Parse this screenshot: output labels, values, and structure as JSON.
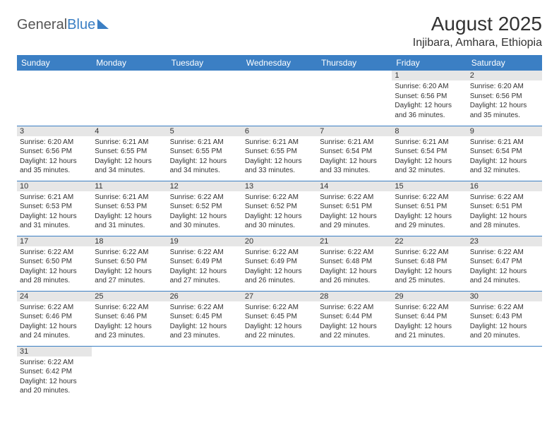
{
  "logo": {
    "part1": "General",
    "part2": "Blue"
  },
  "title": "August 2025",
  "location": "Injibara, Amhara, Ethiopia",
  "colors": {
    "header_bg": "#3b7fc4",
    "header_text": "#ffffff",
    "grid_line": "#3b7fc4",
    "daynum_bg": "#e6e6e6",
    "text": "#333333",
    "background": "#ffffff"
  },
  "typography": {
    "title_fontsize": 28,
    "location_fontsize": 16,
    "dayhead_fontsize": 12,
    "daynum_fontsize": 11,
    "body_fontsize": 10
  },
  "calendar": {
    "type": "table",
    "columns": [
      "Sunday",
      "Monday",
      "Tuesday",
      "Wednesday",
      "Thursday",
      "Friday",
      "Saturday"
    ],
    "weeks": [
      [
        null,
        null,
        null,
        null,
        null,
        {
          "n": "1",
          "sunrise": "Sunrise: 6:20 AM",
          "sunset": "Sunset: 6:56 PM",
          "daylight": "Daylight: 12 hours and 36 minutes."
        },
        {
          "n": "2",
          "sunrise": "Sunrise: 6:20 AM",
          "sunset": "Sunset: 6:56 PM",
          "daylight": "Daylight: 12 hours and 35 minutes."
        }
      ],
      [
        {
          "n": "3",
          "sunrise": "Sunrise: 6:20 AM",
          "sunset": "Sunset: 6:56 PM",
          "daylight": "Daylight: 12 hours and 35 minutes."
        },
        {
          "n": "4",
          "sunrise": "Sunrise: 6:21 AM",
          "sunset": "Sunset: 6:55 PM",
          "daylight": "Daylight: 12 hours and 34 minutes."
        },
        {
          "n": "5",
          "sunrise": "Sunrise: 6:21 AM",
          "sunset": "Sunset: 6:55 PM",
          "daylight": "Daylight: 12 hours and 34 minutes."
        },
        {
          "n": "6",
          "sunrise": "Sunrise: 6:21 AM",
          "sunset": "Sunset: 6:55 PM",
          "daylight": "Daylight: 12 hours and 33 minutes."
        },
        {
          "n": "7",
          "sunrise": "Sunrise: 6:21 AM",
          "sunset": "Sunset: 6:54 PM",
          "daylight": "Daylight: 12 hours and 33 minutes."
        },
        {
          "n": "8",
          "sunrise": "Sunrise: 6:21 AM",
          "sunset": "Sunset: 6:54 PM",
          "daylight": "Daylight: 12 hours and 32 minutes."
        },
        {
          "n": "9",
          "sunrise": "Sunrise: 6:21 AM",
          "sunset": "Sunset: 6:54 PM",
          "daylight": "Daylight: 12 hours and 32 minutes."
        }
      ],
      [
        {
          "n": "10",
          "sunrise": "Sunrise: 6:21 AM",
          "sunset": "Sunset: 6:53 PM",
          "daylight": "Daylight: 12 hours and 31 minutes."
        },
        {
          "n": "11",
          "sunrise": "Sunrise: 6:21 AM",
          "sunset": "Sunset: 6:53 PM",
          "daylight": "Daylight: 12 hours and 31 minutes."
        },
        {
          "n": "12",
          "sunrise": "Sunrise: 6:22 AM",
          "sunset": "Sunset: 6:52 PM",
          "daylight": "Daylight: 12 hours and 30 minutes."
        },
        {
          "n": "13",
          "sunrise": "Sunrise: 6:22 AM",
          "sunset": "Sunset: 6:52 PM",
          "daylight": "Daylight: 12 hours and 30 minutes."
        },
        {
          "n": "14",
          "sunrise": "Sunrise: 6:22 AM",
          "sunset": "Sunset: 6:51 PM",
          "daylight": "Daylight: 12 hours and 29 minutes."
        },
        {
          "n": "15",
          "sunrise": "Sunrise: 6:22 AM",
          "sunset": "Sunset: 6:51 PM",
          "daylight": "Daylight: 12 hours and 29 minutes."
        },
        {
          "n": "16",
          "sunrise": "Sunrise: 6:22 AM",
          "sunset": "Sunset: 6:51 PM",
          "daylight": "Daylight: 12 hours and 28 minutes."
        }
      ],
      [
        {
          "n": "17",
          "sunrise": "Sunrise: 6:22 AM",
          "sunset": "Sunset: 6:50 PM",
          "daylight": "Daylight: 12 hours and 28 minutes."
        },
        {
          "n": "18",
          "sunrise": "Sunrise: 6:22 AM",
          "sunset": "Sunset: 6:50 PM",
          "daylight": "Daylight: 12 hours and 27 minutes."
        },
        {
          "n": "19",
          "sunrise": "Sunrise: 6:22 AM",
          "sunset": "Sunset: 6:49 PM",
          "daylight": "Daylight: 12 hours and 27 minutes."
        },
        {
          "n": "20",
          "sunrise": "Sunrise: 6:22 AM",
          "sunset": "Sunset: 6:49 PM",
          "daylight": "Daylight: 12 hours and 26 minutes."
        },
        {
          "n": "21",
          "sunrise": "Sunrise: 6:22 AM",
          "sunset": "Sunset: 6:48 PM",
          "daylight": "Daylight: 12 hours and 26 minutes."
        },
        {
          "n": "22",
          "sunrise": "Sunrise: 6:22 AM",
          "sunset": "Sunset: 6:48 PM",
          "daylight": "Daylight: 12 hours and 25 minutes."
        },
        {
          "n": "23",
          "sunrise": "Sunrise: 6:22 AM",
          "sunset": "Sunset: 6:47 PM",
          "daylight": "Daylight: 12 hours and 24 minutes."
        }
      ],
      [
        {
          "n": "24",
          "sunrise": "Sunrise: 6:22 AM",
          "sunset": "Sunset: 6:46 PM",
          "daylight": "Daylight: 12 hours and 24 minutes."
        },
        {
          "n": "25",
          "sunrise": "Sunrise: 6:22 AM",
          "sunset": "Sunset: 6:46 PM",
          "daylight": "Daylight: 12 hours and 23 minutes."
        },
        {
          "n": "26",
          "sunrise": "Sunrise: 6:22 AM",
          "sunset": "Sunset: 6:45 PM",
          "daylight": "Daylight: 12 hours and 23 minutes."
        },
        {
          "n": "27",
          "sunrise": "Sunrise: 6:22 AM",
          "sunset": "Sunset: 6:45 PM",
          "daylight": "Daylight: 12 hours and 22 minutes."
        },
        {
          "n": "28",
          "sunrise": "Sunrise: 6:22 AM",
          "sunset": "Sunset: 6:44 PM",
          "daylight": "Daylight: 12 hours and 22 minutes."
        },
        {
          "n": "29",
          "sunrise": "Sunrise: 6:22 AM",
          "sunset": "Sunset: 6:44 PM",
          "daylight": "Daylight: 12 hours and 21 minutes."
        },
        {
          "n": "30",
          "sunrise": "Sunrise: 6:22 AM",
          "sunset": "Sunset: 6:43 PM",
          "daylight": "Daylight: 12 hours and 20 minutes."
        }
      ],
      [
        {
          "n": "31",
          "sunrise": "Sunrise: 6:22 AM",
          "sunset": "Sunset: 6:42 PM",
          "daylight": "Daylight: 12 hours and 20 minutes."
        },
        null,
        null,
        null,
        null,
        null,
        null
      ]
    ]
  }
}
